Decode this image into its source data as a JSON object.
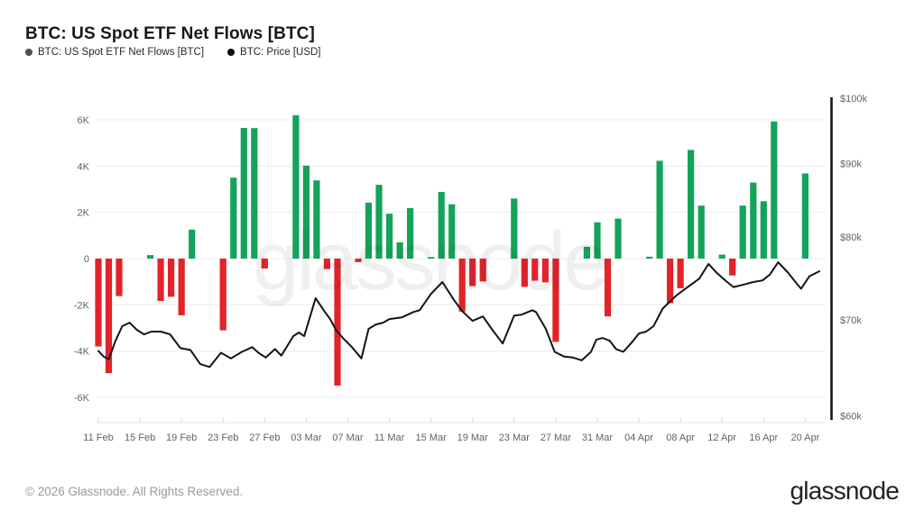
{
  "header": {
    "title": "BTC: US Spot ETF Net Flows [BTC]"
  },
  "legend": [
    {
      "label": "BTC: US Spot ETF Net Flows [BTC]",
      "color": "#4b4c57"
    },
    {
      "label": "BTC: Price [USD]",
      "color": "#0b0b0d"
    }
  ],
  "watermark": "glassnode",
  "footer": {
    "copyright": "© 2026 Glassnode. All Rights Reserved.",
    "logo_text": "glassnode"
  },
  "chart_data": {
    "type": "bar",
    "title": "BTC: US Spot ETF Net Flows [BTC]",
    "series": [
      {
        "name": "BTC: US Spot ETF Net Flows [BTC]",
        "type": "bar",
        "unit": "BTC",
        "axis": "left"
      },
      {
        "name": "BTC: Price [USD]",
        "type": "line",
        "unit": "USD",
        "axis": "right",
        "scale": "log"
      }
    ],
    "colors": {
      "positive": "#13a35a",
      "negative": "#e2232a",
      "price_line": "#131417",
      "grid": "#ececec",
      "axis_text": "#5f6368"
    },
    "x_axis": {
      "tick_labels": [
        "11 Feb",
        "15 Feb",
        "19 Feb",
        "23 Feb",
        "27 Feb",
        "03 Mar",
        "07 Mar",
        "11 Mar",
        "15 Mar",
        "19 Mar",
        "23 Mar",
        "27 Mar",
        "31 Mar",
        "04 Apr",
        "08 Apr",
        "12 Apr",
        "16 Apr",
        "20 Apr"
      ],
      "tick_days": [
        0,
        4,
        8,
        12,
        16,
        20,
        24,
        28,
        32,
        36,
        40,
        44,
        48,
        52,
        56,
        60,
        64,
        68
      ]
    },
    "left_axis": {
      "tick_labels": [
        "6K",
        "4K",
        "2K",
        "0",
        "-2K",
        "-4K",
        "-6K"
      ],
      "tick_values": [
        6000,
        4000,
        2000,
        0,
        -2000,
        -4000,
        -6000
      ],
      "range": [
        -7000,
        7000
      ]
    },
    "right_axis": {
      "tick_labels": [
        "$100k",
        "$90k",
        "$80k",
        "$70k",
        "$60k"
      ],
      "tick_values": [
        100000,
        90000,
        80000,
        70000,
        60000
      ],
      "scale": "log",
      "range": [
        60000,
        100000
      ]
    },
    "bars": [
      {
        "date": "11 Feb",
        "day": 0,
        "value": -3800
      },
      {
        "date": "12 Feb",
        "day": 1,
        "value": -4950
      },
      {
        "date": "13 Feb",
        "day": 2,
        "value": -1620
      },
      {
        "date": "16 Feb",
        "day": 5,
        "value": 150
      },
      {
        "date": "17 Feb",
        "day": 6,
        "value": -1830
      },
      {
        "date": "18 Feb",
        "day": 7,
        "value": -1650
      },
      {
        "date": "19 Feb",
        "day": 8,
        "value": -2450
      },
      {
        "date": "20 Feb",
        "day": 9,
        "value": 1250
      },
      {
        "date": "23 Feb",
        "day": 12,
        "value": -3100
      },
      {
        "date": "24 Feb",
        "day": 13,
        "value": 3500
      },
      {
        "date": "25 Feb",
        "day": 14,
        "value": 5650
      },
      {
        "date": "26 Feb",
        "day": 15,
        "value": 5640
      },
      {
        "date": "27 Feb",
        "day": 16,
        "value": -430
      },
      {
        "date": "02 Mar",
        "day": 19,
        "value": 6200
      },
      {
        "date": "03 Mar",
        "day": 20,
        "value": 4020
      },
      {
        "date": "04 Mar",
        "day": 21,
        "value": 3380
      },
      {
        "date": "05 Mar",
        "day": 22,
        "value": -450
      },
      {
        "date": "06 Mar",
        "day": 23,
        "value": -5490
      },
      {
        "date": "08 Mar",
        "day": 25,
        "value": -150
      },
      {
        "date": "09 Mar",
        "day": 26,
        "value": 2420
      },
      {
        "date": "10 Mar",
        "day": 27,
        "value": 3190
      },
      {
        "date": "11 Mar",
        "day": 28,
        "value": 1940
      },
      {
        "date": "12 Mar",
        "day": 29,
        "value": 700
      },
      {
        "date": "13 Mar",
        "day": 30,
        "value": 2180
      },
      {
        "date": "15 Mar",
        "day": 32,
        "value": 70
      },
      {
        "date": "16 Mar",
        "day": 33,
        "value": 2880
      },
      {
        "date": "17 Mar",
        "day": 34,
        "value": 2350
      },
      {
        "date": "18 Mar",
        "day": 35,
        "value": -2290
      },
      {
        "date": "19 Mar",
        "day": 36,
        "value": -1190
      },
      {
        "date": "20 Mar",
        "day": 37,
        "value": -990
      },
      {
        "date": "23 Mar",
        "day": 40,
        "value": 2600
      },
      {
        "date": "24 Mar",
        "day": 41,
        "value": -1220
      },
      {
        "date": "25 Mar",
        "day": 42,
        "value": -960
      },
      {
        "date": "26 Mar",
        "day": 43,
        "value": -1030
      },
      {
        "date": "27 Mar",
        "day": 44,
        "value": -3600
      },
      {
        "date": "30 Mar",
        "day": 47,
        "value": 510
      },
      {
        "date": "31 Mar",
        "day": 48,
        "value": 1570
      },
      {
        "date": "01 Apr",
        "day": 49,
        "value": -2500
      },
      {
        "date": "02 Apr",
        "day": 50,
        "value": 1730
      },
      {
        "date": "05 Apr",
        "day": 53,
        "value": 80
      },
      {
        "date": "06 Apr",
        "day": 54,
        "value": 4230
      },
      {
        "date": "07 Apr",
        "day": 55,
        "value": -1930
      },
      {
        "date": "08 Apr",
        "day": 56,
        "value": -1280
      },
      {
        "date": "09 Apr",
        "day": 57,
        "value": 4700
      },
      {
        "date": "10 Apr",
        "day": 58,
        "value": 2290
      },
      {
        "date": "12 Apr",
        "day": 60,
        "value": 170
      },
      {
        "date": "13 Apr",
        "day": 61,
        "value": -730
      },
      {
        "date": "14 Apr",
        "day": 62,
        "value": 2290
      },
      {
        "date": "15 Apr",
        "day": 63,
        "value": 3290
      },
      {
        "date": "16 Apr",
        "day": 64,
        "value": 2480
      },
      {
        "date": "17 Apr",
        "day": 65,
        "value": 5930
      },
      {
        "date": "20 Apr",
        "day": 68,
        "value": 3680
      }
    ],
    "price_line": [
      [
        0.0,
        66600
      ],
      [
        0.5,
        66000
      ],
      [
        1.0,
        65700
      ],
      [
        1.65,
        67700
      ],
      [
        2.3,
        69300
      ],
      [
        3.0,
        69700
      ],
      [
        3.7,
        68900
      ],
      [
        4.4,
        68400
      ],
      [
        5.1,
        68700
      ],
      [
        6.0,
        68700
      ],
      [
        6.9,
        68400
      ],
      [
        7.9,
        66900
      ],
      [
        8.85,
        66700
      ],
      [
        9.8,
        65200
      ],
      [
        10.7,
        64900
      ],
      [
        11.8,
        66400
      ],
      [
        12.75,
        65800
      ],
      [
        13.8,
        66500
      ],
      [
        14.8,
        67000
      ],
      [
        15.4,
        66400
      ],
      [
        16.1,
        65900
      ],
      [
        17.0,
        66800
      ],
      [
        17.6,
        66100
      ],
      [
        18.75,
        68200
      ],
      [
        19.3,
        68600
      ],
      [
        19.8,
        68200
      ],
      [
        20.9,
        72500
      ],
      [
        21.8,
        70900
      ],
      [
        22.3,
        70100
      ],
      [
        22.9,
        68800
      ],
      [
        23.6,
        67900
      ],
      [
        24.4,
        67000
      ],
      [
        25.3,
        65800
      ],
      [
        26.0,
        69000
      ],
      [
        26.7,
        69500
      ],
      [
        27.4,
        69700
      ],
      [
        28.0,
        70100
      ],
      [
        29.2,
        70300
      ],
      [
        30.3,
        70900
      ],
      [
        30.9,
        71100
      ],
      [
        32.0,
        73000
      ],
      [
        33.1,
        74400
      ],
      [
        34.2,
        72300
      ],
      [
        35.0,
        71000
      ],
      [
        36.0,
        69900
      ],
      [
        37.0,
        70400
      ],
      [
        37.9,
        68900
      ],
      [
        38.9,
        67400
      ],
      [
        40.0,
        70500
      ],
      [
        40.7,
        70600
      ],
      [
        41.75,
        71100
      ],
      [
        42.1,
        70900
      ],
      [
        43.05,
        69000
      ],
      [
        43.9,
        66500
      ],
      [
        44.8,
        66000
      ],
      [
        45.65,
        65900
      ],
      [
        46.5,
        65600
      ],
      [
        47.4,
        66500
      ],
      [
        47.9,
        67800
      ],
      [
        48.5,
        68000
      ],
      [
        49.2,
        67700
      ],
      [
        49.8,
        66800
      ],
      [
        50.5,
        66500
      ],
      [
        51.3,
        67500
      ],
      [
        52.0,
        68500
      ],
      [
        52.7,
        68700
      ],
      [
        53.4,
        69300
      ],
      [
        54.3,
        71300
      ],
      [
        55.6,
        72800
      ],
      [
        56.9,
        74000
      ],
      [
        57.8,
        74800
      ],
      [
        58.7,
        76600
      ],
      [
        59.5,
        75500
      ],
      [
        60.4,
        74500
      ],
      [
        61.1,
        73800
      ],
      [
        62.1,
        74100
      ],
      [
        63.0,
        74400
      ],
      [
        63.9,
        74600
      ],
      [
        64.6,
        75300
      ],
      [
        65.4,
        76800
      ],
      [
        66.3,
        75600
      ],
      [
        67.2,
        74200
      ],
      [
        67.6,
        73600
      ],
      [
        68.4,
        75100
      ],
      [
        69.35,
        75700
      ]
    ]
  }
}
